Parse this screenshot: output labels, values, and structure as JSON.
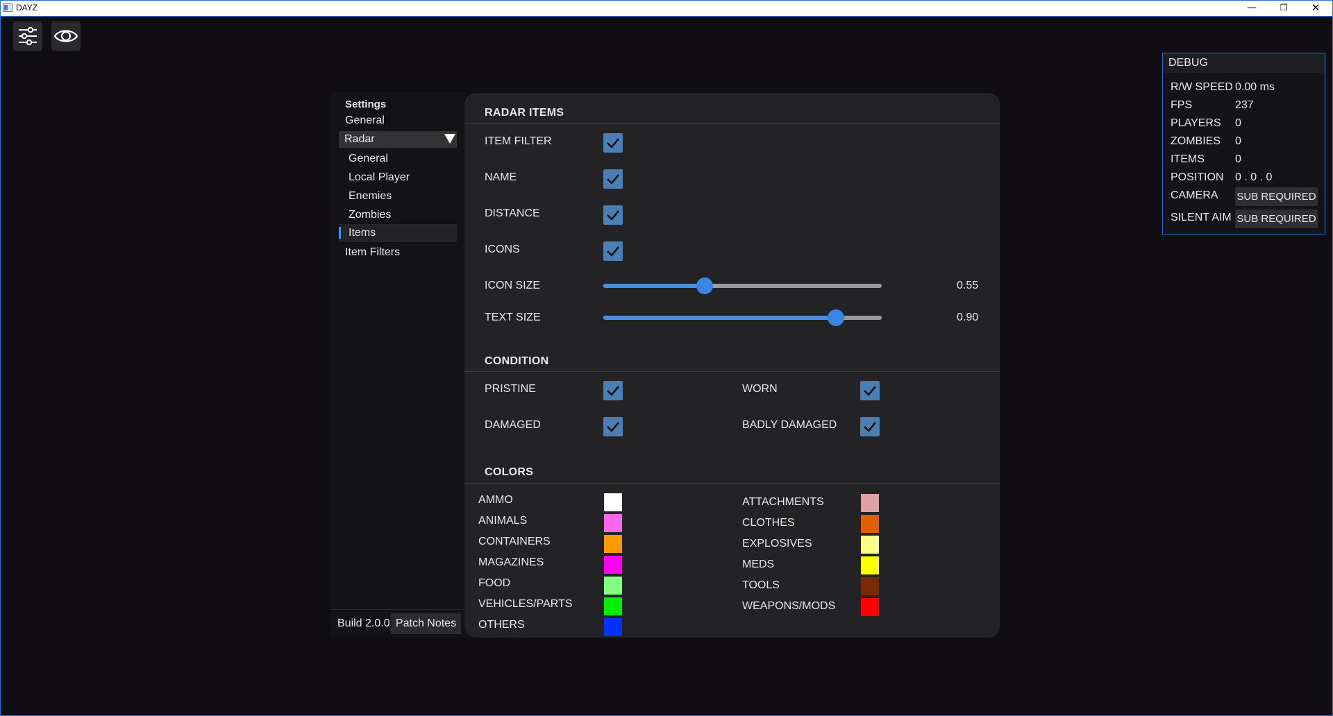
{
  "window": {
    "title": "DAYZ",
    "minimize": "—",
    "maximize": "❐",
    "close": "✕"
  },
  "toolbar": {
    "settings_icon": "sliders-icon",
    "visuals_icon": "eye-icon"
  },
  "sidebar": {
    "heading": "Settings",
    "general": "General",
    "radar": "Radar",
    "radar_children": [
      "General",
      "Local Player",
      "Enemies",
      "Zombies",
      "Items"
    ],
    "active": "Items",
    "item_filters": "Item Filters",
    "build": "Build 2.0.0",
    "patch_notes": "Patch Notes"
  },
  "radar_items": {
    "title": "RADAR ITEMS",
    "item_filter": {
      "label": "ITEM FILTER",
      "checked": true
    },
    "name": {
      "label": "NAME",
      "checked": true
    },
    "distance": {
      "label": "DISTANCE",
      "checked": true
    },
    "icons": {
      "label": "ICONS",
      "checked": true
    },
    "icon_size": {
      "label": "ICON SIZE",
      "value": "0.55",
      "fraction": 0.365
    },
    "text_size": {
      "label": "TEXT SIZE",
      "value": "0.90",
      "fraction": 0.835
    }
  },
  "condition": {
    "title": "CONDITION",
    "pristine": {
      "label": "PRISTINE",
      "checked": true
    },
    "worn": {
      "label": "WORN",
      "checked": true
    },
    "damaged": {
      "label": "DAMAGED",
      "checked": true
    },
    "badly_damaged": {
      "label": "BADLY DAMAGED",
      "checked": true
    }
  },
  "colors": {
    "title": "COLORS",
    "left": [
      {
        "label": "AMMO",
        "color": "#ffffff"
      },
      {
        "label": "ANIMALS",
        "color": "#ff66ee"
      },
      {
        "label": "CONTAINERS",
        "color": "#ff9900"
      },
      {
        "label": "MAGAZINES",
        "color": "#ff00ee"
      },
      {
        "label": "FOOD",
        "color": "#80ff80"
      },
      {
        "label": "VEHICLES/PARTS",
        "color": "#00ee00"
      },
      {
        "label": "OTHERS",
        "color": "#0033ff"
      }
    ],
    "right": [
      {
        "label": "ATTACHMENTS",
        "color": "#e0a0a8"
      },
      {
        "label": "CLOTHES",
        "color": "#e06000"
      },
      {
        "label": "EXPLOSIVES",
        "color": "#ffff88"
      },
      {
        "label": "MEDS",
        "color": "#ffff00"
      },
      {
        "label": "TOOLS",
        "color": "#7a2a00"
      },
      {
        "label": "WEAPONS/MODS",
        "color": "#ff0000"
      }
    ]
  },
  "debug": {
    "title": "DEBUG",
    "rw_speed": {
      "label": "R/W SPEED",
      "value": "0.00 ms"
    },
    "fps": {
      "label": "FPS",
      "value": "237"
    },
    "players": {
      "label": "PLAYERS",
      "value": "0"
    },
    "zombies": {
      "label": "ZOMBIES",
      "value": "0"
    },
    "items": {
      "label": "ITEMS",
      "value": "0"
    },
    "position": {
      "label": "POSITION",
      "value": "0 . 0 . 0"
    },
    "camera": {
      "label": "CAMERA",
      "value": "SUB REQUIRED"
    },
    "silent_aim": {
      "label": "SILENT AIM",
      "value": "SUB REQUIRED"
    }
  },
  "theme": {
    "accent": "#4a90e2",
    "checkbox": "#4a7fb5",
    "panel": "#232326",
    "background": "#100d13"
  }
}
